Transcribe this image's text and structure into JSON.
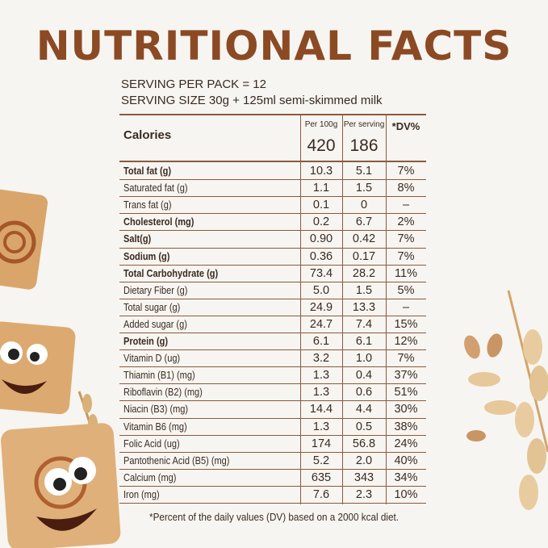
{
  "header": {
    "title": "NUTRITIONAL FACTS",
    "serving_per_pack": "SERVING PER PACK = 12",
    "serving_size": "SERVING SIZE 30g + 125ml semi-skimmed milk"
  },
  "table": {
    "calories_label": "Calories",
    "columns": [
      "Per 100g",
      "Per serving",
      "*DV%"
    ],
    "calories": [
      "420",
      "186"
    ],
    "rows": [
      {
        "name": "Total fat (g)",
        "bold": true,
        "values": [
          "10.3",
          "5.1",
          "7%"
        ]
      },
      {
        "name": "Saturated fat (g)",
        "bold": false,
        "values": [
          "1.1",
          "1.5",
          "8%"
        ]
      },
      {
        "name": "Trans fat (g)",
        "bold": false,
        "values": [
          "0.1",
          "0",
          "–"
        ]
      },
      {
        "name": "Cholesterol (mg)",
        "bold": true,
        "values": [
          "0.2",
          "6.7",
          "2%"
        ]
      },
      {
        "name": "Salt(g)",
        "bold": true,
        "values": [
          "0.90",
          "0.42",
          "7%"
        ]
      },
      {
        "name": "Sodium (g)",
        "bold": true,
        "values": [
          "0.36",
          "0.17",
          "7%"
        ]
      },
      {
        "name": "Total Carbohydrate (g)",
        "bold": true,
        "values": [
          "73.4",
          "28.2",
          "11%"
        ]
      },
      {
        "name": "Dietary Fiber (g)",
        "bold": false,
        "values": [
          "5.0",
          "1.5",
          "5%"
        ]
      },
      {
        "name": "Total sugar (g)",
        "bold": false,
        "values": [
          "24.9",
          "13.3",
          "–"
        ]
      },
      {
        "name": "Added sugar (g)",
        "bold": false,
        "values": [
          "24.7",
          "7.4",
          "15%"
        ]
      },
      {
        "name": "Protein (g)",
        "bold": true,
        "values": [
          "6.1",
          "6.1",
          "12%"
        ]
      },
      {
        "name": "Vitamin D (ug)",
        "bold": false,
        "values": [
          "3.2",
          "1.0",
          "7%"
        ]
      },
      {
        "name": "Thiamin (B1) (mg)",
        "bold": false,
        "values": [
          "1.3",
          "0.4",
          "37%"
        ]
      },
      {
        "name": "Riboflavin (B2) (mg)",
        "bold": false,
        "values": [
          "1.3",
          "0.6",
          "51%"
        ]
      },
      {
        "name": "Niacin (B3) (mg)",
        "bold": false,
        "values": [
          "14.4",
          "4.4",
          "30%"
        ]
      },
      {
        "name": "Vitamin B6 (mg)",
        "bold": false,
        "values": [
          "1.3",
          "0.5",
          "38%"
        ]
      },
      {
        "name": "Folic Acid (ug)",
        "bold": false,
        "values": [
          "174",
          "56.8",
          "24%"
        ]
      },
      {
        "name": "Pantothenic Acid (B5) (mg)",
        "bold": false,
        "values": [
          "5.2",
          "2.0",
          "40%"
        ]
      },
      {
        "name": "Calcium (mg)",
        "bold": false,
        "values": [
          "635",
          "343",
          "34%"
        ]
      },
      {
        "name": "Iron (mg)",
        "bold": false,
        "values": [
          "7.6",
          "2.3",
          "10%"
        ]
      }
    ]
  },
  "footnote": "*Percent of the daily values (DV) based on a 2000 kcal diet."
}
